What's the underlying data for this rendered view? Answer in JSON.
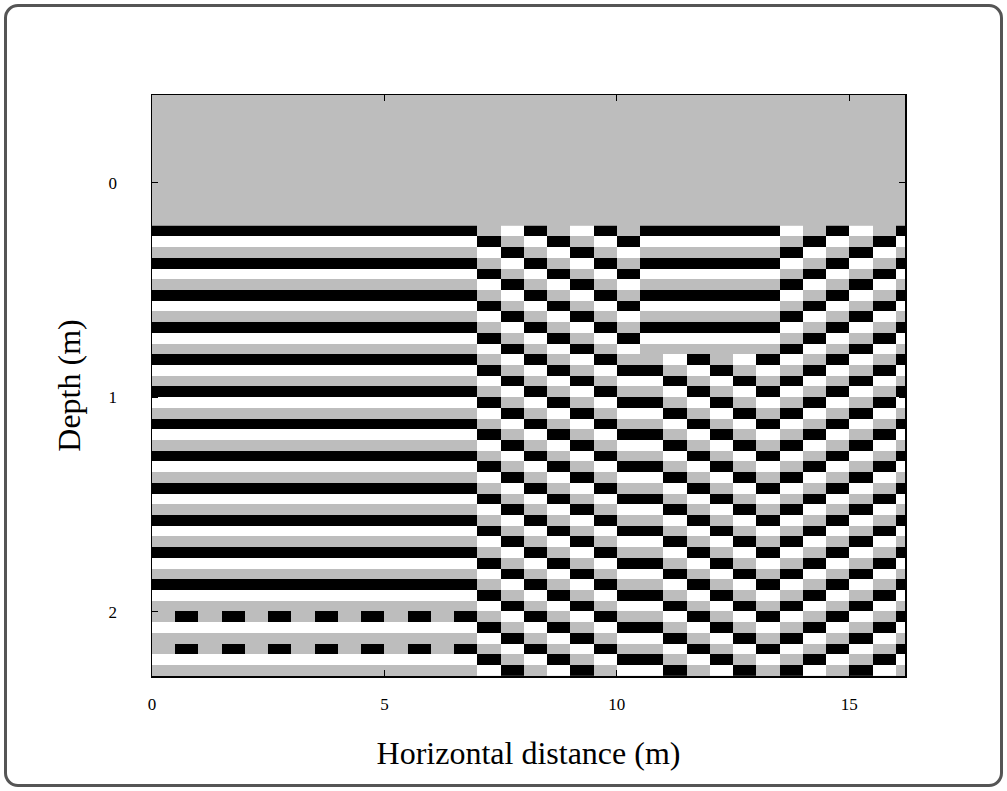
{
  "chart_data": {
    "type": "heatmap",
    "xlabel": "Horizontal distance (m)",
    "ylabel": "Depth (m)",
    "x": [
      0.25,
      0.75,
      1.25,
      1.75,
      2.25,
      2.75,
      3.25,
      3.75,
      4.25,
      4.75,
      5.25,
      5.75,
      6.25,
      6.75,
      7.25,
      7.75,
      8.25,
      8.75,
      9.25,
      9.75,
      10.25,
      10.75,
      11.25,
      11.75,
      12.25,
      12.75,
      13.25,
      13.75,
      14.25,
      14.75,
      15.25,
      15.75,
      16.25
    ],
    "y": [
      0.225,
      0.275,
      0.325,
      0.375,
      0.425,
      0.475,
      0.525,
      0.575,
      0.625,
      0.675,
      0.725,
      0.775,
      0.825,
      0.875,
      0.925,
      0.975,
      1.025,
      1.075,
      1.125,
      1.175,
      1.225,
      1.275,
      1.325,
      1.375,
      1.425,
      1.475,
      1.525,
      1.575,
      1.625,
      1.675,
      1.725,
      1.775,
      1.825,
      1.875,
      1.925,
      1.975,
      2.025,
      2.075,
      2.125,
      2.175,
      2.225,
      2.275
    ],
    "z": [
      [
        -1,
        -1,
        -1,
        -1,
        -1,
        -1,
        -1,
        -1,
        -1,
        -1,
        -1,
        -1,
        -1,
        -1,
        0,
        1,
        -1,
        0,
        1,
        -1,
        0,
        -1,
        -1,
        -1,
        -1,
        -1,
        -1,
        1,
        0,
        -1,
        1,
        0,
        -1
      ],
      [
        1,
        1,
        1,
        1,
        1,
        1,
        1,
        1,
        1,
        1,
        1,
        1,
        1,
        1,
        -1,
        0,
        1,
        -1,
        0,
        1,
        -1,
        1,
        1,
        1,
        1,
        1,
        1,
        0,
        -1,
        1,
        0,
        -1,
        1
      ],
      [
        0,
        0,
        0,
        0,
        0,
        0,
        0,
        0,
        0,
        0,
        0,
        0,
        0,
        0,
        1,
        -1,
        0,
        1,
        -1,
        0,
        1,
        0,
        0,
        0,
        0,
        0,
        0,
        -1,
        1,
        0,
        -1,
        1,
        0
      ],
      [
        -1,
        -1,
        -1,
        -1,
        -1,
        -1,
        -1,
        -1,
        -1,
        -1,
        -1,
        -1,
        -1,
        -1,
        0,
        1,
        -1,
        0,
        1,
        -1,
        0,
        -1,
        -1,
        -1,
        -1,
        -1,
        -1,
        1,
        0,
        -1,
        1,
        0,
        -1
      ],
      [
        1,
        1,
        1,
        1,
        1,
        1,
        1,
        1,
        1,
        1,
        1,
        1,
        1,
        1,
        -1,
        0,
        1,
        -1,
        0,
        1,
        -1,
        1,
        1,
        1,
        1,
        1,
        1,
        0,
        -1,
        1,
        0,
        -1,
        1
      ],
      [
        0,
        0,
        0,
        0,
        0,
        0,
        0,
        0,
        0,
        0,
        0,
        0,
        0,
        0,
        1,
        -1,
        0,
        1,
        -1,
        0,
        1,
        0,
        0,
        0,
        0,
        0,
        0,
        -1,
        1,
        0,
        -1,
        1,
        0
      ],
      [
        -1,
        -1,
        -1,
        -1,
        -1,
        -1,
        -1,
        -1,
        -1,
        -1,
        -1,
        -1,
        -1,
        -1,
        0,
        1,
        -1,
        0,
        1,
        -1,
        0,
        -1,
        -1,
        -1,
        -1,
        -1,
        -1,
        1,
        0,
        -1,
        1,
        0,
        -1
      ],
      [
        1,
        1,
        1,
        1,
        1,
        1,
        1,
        1,
        1,
        1,
        1,
        1,
        1,
        1,
        -1,
        0,
        1,
        -1,
        0,
        1,
        -1,
        1,
        1,
        1,
        1,
        1,
        1,
        0,
        -1,
        1,
        0,
        -1,
        1
      ],
      [
        0,
        0,
        0,
        0,
        0,
        0,
        0,
        0,
        0,
        0,
        0,
        0,
        0,
        0,
        1,
        -1,
        0,
        1,
        -1,
        0,
        1,
        0,
        0,
        0,
        0,
        0,
        0,
        -1,
        1,
        0,
        -1,
        1,
        0
      ],
      [
        -1,
        -1,
        -1,
        -1,
        -1,
        -1,
        -1,
        -1,
        -1,
        -1,
        -1,
        -1,
        -1,
        -1,
        0,
        1,
        -1,
        0,
        1,
        -1,
        0,
        -1,
        -1,
        -1,
        -1,
        -1,
        -1,
        1,
        0,
        -1,
        1,
        0,
        -1
      ],
      [
        1,
        1,
        1,
        1,
        1,
        1,
        1,
        1,
        1,
        1,
        1,
        1,
        1,
        1,
        -1,
        0,
        1,
        -1,
        0,
        1,
        -1,
        1,
        1,
        1,
        1,
        1,
        1,
        0,
        -1,
        1,
        0,
        -1,
        1
      ],
      [
        0,
        0,
        0,
        0,
        0,
        0,
        0,
        0,
        0,
        0,
        0,
        0,
        0,
        0,
        1,
        -1,
        0,
        1,
        -1,
        0,
        1,
        0,
        0,
        0,
        0,
        0,
        0,
        -1,
        1,
        0,
        -1,
        1,
        0
      ],
      [
        -1,
        -1,
        -1,
        -1,
        -1,
        -1,
        -1,
        -1,
        -1,
        -1,
        -1,
        -1,
        -1,
        -1,
        0,
        1,
        -1,
        0,
        1,
        -1,
        0,
        0,
        1,
        -1,
        0,
        1,
        -1,
        1,
        0,
        -1,
        1,
        0,
        -1
      ],
      [
        1,
        1,
        1,
        1,
        1,
        1,
        1,
        1,
        1,
        1,
        1,
        1,
        1,
        1,
        -1,
        0,
        1,
        -1,
        0,
        1,
        -1,
        -1,
        0,
        1,
        -1,
        0,
        1,
        0,
        -1,
        1,
        0,
        -1,
        1
      ],
      [
        0,
        0,
        0,
        0,
        0,
        0,
        0,
        0,
        0,
        0,
        0,
        0,
        0,
        0,
        1,
        -1,
        0,
        1,
        -1,
        0,
        1,
        1,
        -1,
        0,
        1,
        -1,
        0,
        -1,
        1,
        0,
        -1,
        1,
        0
      ],
      [
        -1,
        -1,
        -1,
        -1,
        -1,
        -1,
        -1,
        -1,
        -1,
        -1,
        -1,
        -1,
        -1,
        -1,
        0,
        1,
        -1,
        0,
        1,
        -1,
        0,
        0,
        1,
        -1,
        0,
        1,
        -1,
        1,
        0,
        -1,
        1,
        0,
        -1
      ],
      [
        1,
        1,
        1,
        1,
        1,
        1,
        1,
        1,
        1,
        1,
        1,
        1,
        1,
        1,
        -1,
        0,
        1,
        -1,
        0,
        1,
        -1,
        -1,
        0,
        1,
        -1,
        0,
        1,
        0,
        -1,
        1,
        0,
        -1,
        1
      ],
      [
        0,
        0,
        0,
        0,
        0,
        0,
        0,
        0,
        0,
        0,
        0,
        0,
        0,
        0,
        1,
        -1,
        0,
        1,
        -1,
        0,
        1,
        1,
        -1,
        0,
        1,
        -1,
        0,
        -1,
        1,
        0,
        -1,
        1,
        0
      ],
      [
        -1,
        -1,
        -1,
        -1,
        -1,
        -1,
        -1,
        -1,
        -1,
        -1,
        -1,
        -1,
        -1,
        -1,
        0,
        1,
        -1,
        0,
        1,
        -1,
        0,
        0,
        1,
        -1,
        0,
        1,
        -1,
        1,
        0,
        -1,
        1,
        0,
        -1
      ],
      [
        1,
        1,
        1,
        1,
        1,
        1,
        1,
        1,
        1,
        1,
        1,
        1,
        1,
        1,
        -1,
        0,
        1,
        -1,
        0,
        1,
        -1,
        -1,
        0,
        1,
        -1,
        0,
        1,
        0,
        -1,
        1,
        0,
        -1,
        1
      ],
      [
        0,
        0,
        0,
        0,
        0,
        0,
        0,
        0,
        0,
        0,
        0,
        0,
        0,
        0,
        1,
        -1,
        0,
        1,
        -1,
        0,
        1,
        1,
        -1,
        0,
        1,
        -1,
        0,
        -1,
        1,
        0,
        -1,
        1,
        0
      ],
      [
        -1,
        -1,
        -1,
        -1,
        -1,
        -1,
        -1,
        -1,
        -1,
        -1,
        -1,
        -1,
        -1,
        -1,
        0,
        1,
        -1,
        0,
        1,
        -1,
        0,
        0,
        1,
        -1,
        0,
        1,
        -1,
        1,
        0,
        -1,
        1,
        0,
        -1
      ],
      [
        1,
        1,
        1,
        1,
        1,
        1,
        1,
        1,
        1,
        1,
        1,
        1,
        1,
        1,
        -1,
        0,
        1,
        -1,
        0,
        1,
        -1,
        -1,
        0,
        1,
        -1,
        0,
        1,
        0,
        -1,
        1,
        0,
        -1,
        1
      ],
      [
        0,
        0,
        0,
        0,
        0,
        0,
        0,
        0,
        0,
        0,
        0,
        0,
        0,
        0,
        1,
        -1,
        0,
        1,
        -1,
        0,
        1,
        1,
        -1,
        0,
        1,
        -1,
        0,
        -1,
        1,
        0,
        -1,
        1,
        0
      ],
      [
        -1,
        -1,
        -1,
        -1,
        -1,
        -1,
        -1,
        -1,
        -1,
        -1,
        -1,
        -1,
        -1,
        -1,
        0,
        1,
        -1,
        0,
        1,
        -1,
        0,
        0,
        1,
        -1,
        0,
        1,
        -1,
        1,
        0,
        -1,
        1,
        0,
        -1
      ],
      [
        1,
        1,
        1,
        1,
        1,
        1,
        1,
        1,
        1,
        1,
        1,
        1,
        1,
        1,
        -1,
        0,
        1,
        -1,
        0,
        1,
        -1,
        -1,
        0,
        1,
        -1,
        0,
        1,
        0,
        -1,
        1,
        0,
        -1,
        1
      ],
      [
        0,
        0,
        0,
        0,
        0,
        0,
        0,
        0,
        0,
        0,
        0,
        0,
        0,
        0,
        1,
        -1,
        0,
        1,
        -1,
        0,
        1,
        1,
        -1,
        0,
        1,
        -1,
        0,
        -1,
        1,
        0,
        -1,
        1,
        0
      ],
      [
        -1,
        -1,
        -1,
        -1,
        -1,
        -1,
        -1,
        -1,
        -1,
        -1,
        -1,
        -1,
        -1,
        -1,
        0,
        1,
        -1,
        0,
        1,
        -1,
        0,
        0,
        1,
        -1,
        0,
        1,
        -1,
        1,
        0,
        -1,
        1,
        0,
        -1
      ],
      [
        1,
        1,
        1,
        1,
        1,
        1,
        1,
        1,
        1,
        1,
        1,
        1,
        1,
        1,
        -1,
        0,
        1,
        -1,
        0,
        1,
        -1,
        -1,
        0,
        1,
        -1,
        0,
        1,
        0,
        -1,
        1,
        0,
        -1,
        1
      ],
      [
        0,
        0,
        0,
        0,
        0,
        0,
        0,
        0,
        0,
        0,
        0,
        0,
        0,
        0,
        1,
        -1,
        0,
        1,
        -1,
        0,
        1,
        1,
        -1,
        0,
        1,
        -1,
        0,
        -1,
        1,
        0,
        -1,
        1,
        0
      ],
      [
        -1,
        -1,
        -1,
        -1,
        -1,
        -1,
        -1,
        -1,
        -1,
        -1,
        -1,
        -1,
        -1,
        -1,
        0,
        1,
        -1,
        0,
        1,
        -1,
        0,
        0,
        1,
        -1,
        0,
        1,
        -1,
        1,
        0,
        -1,
        1,
        0,
        -1
      ],
      [
        1,
        1,
        1,
        1,
        1,
        1,
        1,
        1,
        1,
        1,
        1,
        1,
        1,
        1,
        -1,
        0,
        1,
        -1,
        0,
        1,
        -1,
        -1,
        0,
        1,
        -1,
        0,
        1,
        0,
        -1,
        1,
        0,
        -1,
        1
      ],
      [
        0,
        0,
        0,
        0,
        0,
        0,
        0,
        0,
        0,
        0,
        0,
        0,
        0,
        0,
        1,
        -1,
        0,
        1,
        -1,
        0,
        1,
        1,
        -1,
        0,
        1,
        -1,
        0,
        -1,
        1,
        0,
        -1,
        1,
        0
      ],
      [
        -1,
        -1,
        -1,
        -1,
        -1,
        -1,
        -1,
        -1,
        -1,
        -1,
        -1,
        -1,
        -1,
        -1,
        0,
        1,
        -1,
        0,
        1,
        -1,
        0,
        0,
        1,
        -1,
        0,
        1,
        -1,
        1,
        0,
        -1,
        1,
        0,
        -1
      ],
      [
        1,
        1,
        1,
        1,
        1,
        1,
        1,
        1,
        1,
        1,
        1,
        1,
        1,
        1,
        -1,
        0,
        1,
        -1,
        0,
        1,
        -1,
        -1,
        0,
        1,
        -1,
        0,
        1,
        0,
        -1,
        1,
        0,
        -1,
        1
      ],
      [
        0,
        0,
        0,
        0,
        0,
        0,
        0,
        0,
        0,
        0,
        0,
        0,
        0,
        0,
        1,
        -1,
        0,
        1,
        -1,
        0,
        1,
        1,
        -1,
        0,
        1,
        -1,
        0,
        -1,
        1,
        0,
        -1,
        1,
        0
      ],
      [
        0,
        -1,
        0,
        -1,
        0,
        -1,
        0,
        -1,
        0,
        -1,
        0,
        -1,
        0,
        -1,
        0,
        1,
        -1,
        0,
        1,
        -1,
        0,
        0,
        1,
        -1,
        0,
        1,
        -1,
        1,
        0,
        -1,
        1,
        0,
        -1
      ],
      [
        1,
        1,
        1,
        1,
        1,
        1,
        1,
        1,
        1,
        1,
        1,
        1,
        1,
        1,
        -1,
        0,
        1,
        -1,
        0,
        1,
        -1,
        -1,
        0,
        1,
        -1,
        0,
        1,
        0,
        -1,
        1,
        0,
        -1,
        1
      ],
      [
        0,
        0,
        0,
        0,
        0,
        0,
        0,
        0,
        0,
        0,
        0,
        0,
        0,
        0,
        1,
        -1,
        0,
        1,
        -1,
        0,
        1,
        1,
        -1,
        0,
        1,
        -1,
        0,
        -1,
        1,
        0,
        -1,
        1,
        0
      ],
      [
        0,
        -1,
        0,
        -1,
        0,
        -1,
        0,
        -1,
        0,
        -1,
        0,
        -1,
        0,
        -1,
        0,
        1,
        -1,
        0,
        1,
        -1,
        0,
        0,
        1,
        -1,
        0,
        1,
        -1,
        1,
        0,
        -1,
        1,
        0,
        -1
      ],
      [
        1,
        1,
        1,
        1,
        1,
        1,
        1,
        1,
        1,
        1,
        1,
        1,
        1,
        1,
        -1,
        0,
        1,
        -1,
        0,
        1,
        -1,
        -1,
        0,
        1,
        -1,
        0,
        1,
        0,
        -1,
        1,
        0,
        -1,
        1
      ],
      [
        0,
        0,
        0,
        0,
        0,
        0,
        0,
        0,
        0,
        0,
        0,
        0,
        0,
        0,
        1,
        -1,
        0,
        1,
        -1,
        0,
        1,
        1,
        -1,
        0,
        1,
        -1,
        0,
        -1,
        1,
        0,
        -1,
        1,
        0
      ]
    ],
    "zlim": [
      -1,
      1
    ],
    "xlim": [
      0,
      16.2
    ],
    "ylim": [
      2.3,
      -0.41
    ],
    "xticks": [
      0,
      5,
      10,
      15
    ],
    "yticks": [
      0,
      1,
      2
    ],
    "grid": false
  }
}
